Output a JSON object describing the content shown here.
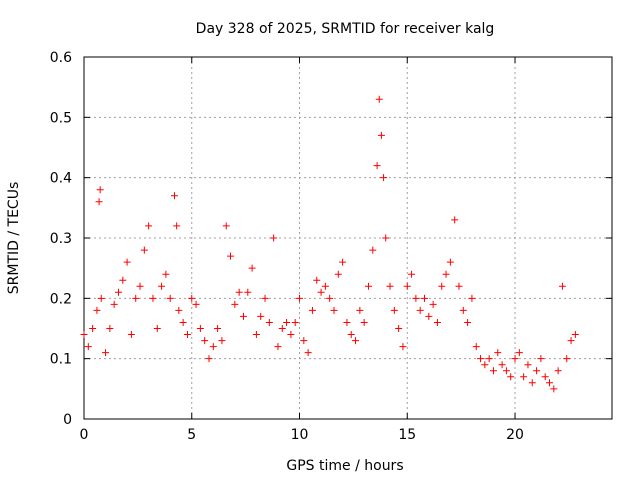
{
  "chart_data": {
    "type": "scatter",
    "title": "Day 328 of 2025, SRMTID for receiver kalg",
    "xlabel": "GPS time / hours",
    "ylabel": "SRMTID / TECUs",
    "xlim": [
      0,
      24.5
    ],
    "ylim": [
      0,
      0.6
    ],
    "x_ticks": [
      0,
      5,
      10,
      15,
      20
    ],
    "y_ticks": [
      0,
      0.1,
      0.2,
      0.3,
      0.4,
      0.5,
      0.6
    ],
    "x_tick_labels": [
      "0",
      "5",
      "10",
      "15",
      "20"
    ],
    "y_tick_labels": [
      "0",
      "0.1",
      "0.2",
      "0.3",
      "0.4",
      "0.5",
      "0.6"
    ],
    "grid": true,
    "marker": "+",
    "color": "#ff0000",
    "series": [
      {
        "name": "SRMTID",
        "x": [
          0.0,
          0.2,
          0.4,
          0.6,
          0.7,
          0.75,
          0.8,
          1.0,
          1.2,
          1.4,
          1.6,
          1.8,
          2.0,
          2.2,
          2.4,
          2.6,
          2.8,
          3.0,
          3.2,
          3.4,
          3.6,
          3.8,
          4.0,
          4.2,
          4.3,
          4.4,
          4.6,
          4.8,
          5.0,
          5.2,
          5.4,
          5.6,
          5.8,
          6.0,
          6.2,
          6.4,
          6.6,
          6.8,
          7.0,
          7.2,
          7.4,
          7.6,
          7.8,
          8.0,
          8.2,
          8.4,
          8.6,
          8.8,
          9.0,
          9.2,
          9.4,
          9.6,
          9.8,
          10.0,
          10.2,
          10.4,
          10.6,
          10.8,
          11.0,
          11.2,
          11.4,
          11.6,
          11.8,
          12.0,
          12.2,
          12.4,
          12.6,
          12.8,
          13.0,
          13.2,
          13.4,
          13.6,
          13.7,
          13.8,
          13.9,
          14.0,
          14.2,
          14.4,
          14.6,
          14.8,
          15.0,
          15.2,
          15.4,
          15.6,
          15.8,
          16.0,
          16.2,
          16.4,
          16.6,
          16.8,
          17.0,
          17.2,
          17.4,
          17.6,
          17.8,
          18.0,
          18.2,
          18.4,
          18.6,
          18.8,
          19.0,
          19.2,
          19.4,
          19.6,
          19.8,
          20.0,
          20.2,
          20.4,
          20.6,
          20.8,
          21.0,
          21.2,
          21.4,
          21.6,
          21.8,
          22.0,
          22.2,
          22.4,
          22.6,
          22.8
        ],
        "y": [
          0.14,
          0.12,
          0.15,
          0.18,
          0.36,
          0.38,
          0.2,
          0.11,
          0.15,
          0.19,
          0.21,
          0.23,
          0.26,
          0.14,
          0.2,
          0.22,
          0.28,
          0.32,
          0.2,
          0.15,
          0.22,
          0.24,
          0.2,
          0.37,
          0.32,
          0.18,
          0.16,
          0.14,
          0.2,
          0.19,
          0.15,
          0.13,
          0.1,
          0.12,
          0.15,
          0.13,
          0.32,
          0.27,
          0.19,
          0.21,
          0.17,
          0.21,
          0.25,
          0.14,
          0.17,
          0.2,
          0.16,
          0.3,
          0.12,
          0.15,
          0.16,
          0.14,
          0.16,
          0.2,
          0.13,
          0.11,
          0.18,
          0.23,
          0.21,
          0.22,
          0.2,
          0.18,
          0.24,
          0.26,
          0.16,
          0.14,
          0.13,
          0.18,
          0.16,
          0.22,
          0.28,
          0.42,
          0.53,
          0.47,
          0.4,
          0.3,
          0.22,
          0.18,
          0.15,
          0.12,
          0.22,
          0.24,
          0.2,
          0.18,
          0.2,
          0.17,
          0.19,
          0.16,
          0.22,
          0.24,
          0.26,
          0.33,
          0.22,
          0.18,
          0.16,
          0.2,
          0.12,
          0.1,
          0.09,
          0.1,
          0.08,
          0.11,
          0.09,
          0.08,
          0.07,
          0.1,
          0.11,
          0.07,
          0.09,
          0.06,
          0.08,
          0.1,
          0.07,
          0.06,
          0.05,
          0.08,
          0.22,
          0.1,
          0.13,
          0.14
        ]
      }
    ]
  }
}
